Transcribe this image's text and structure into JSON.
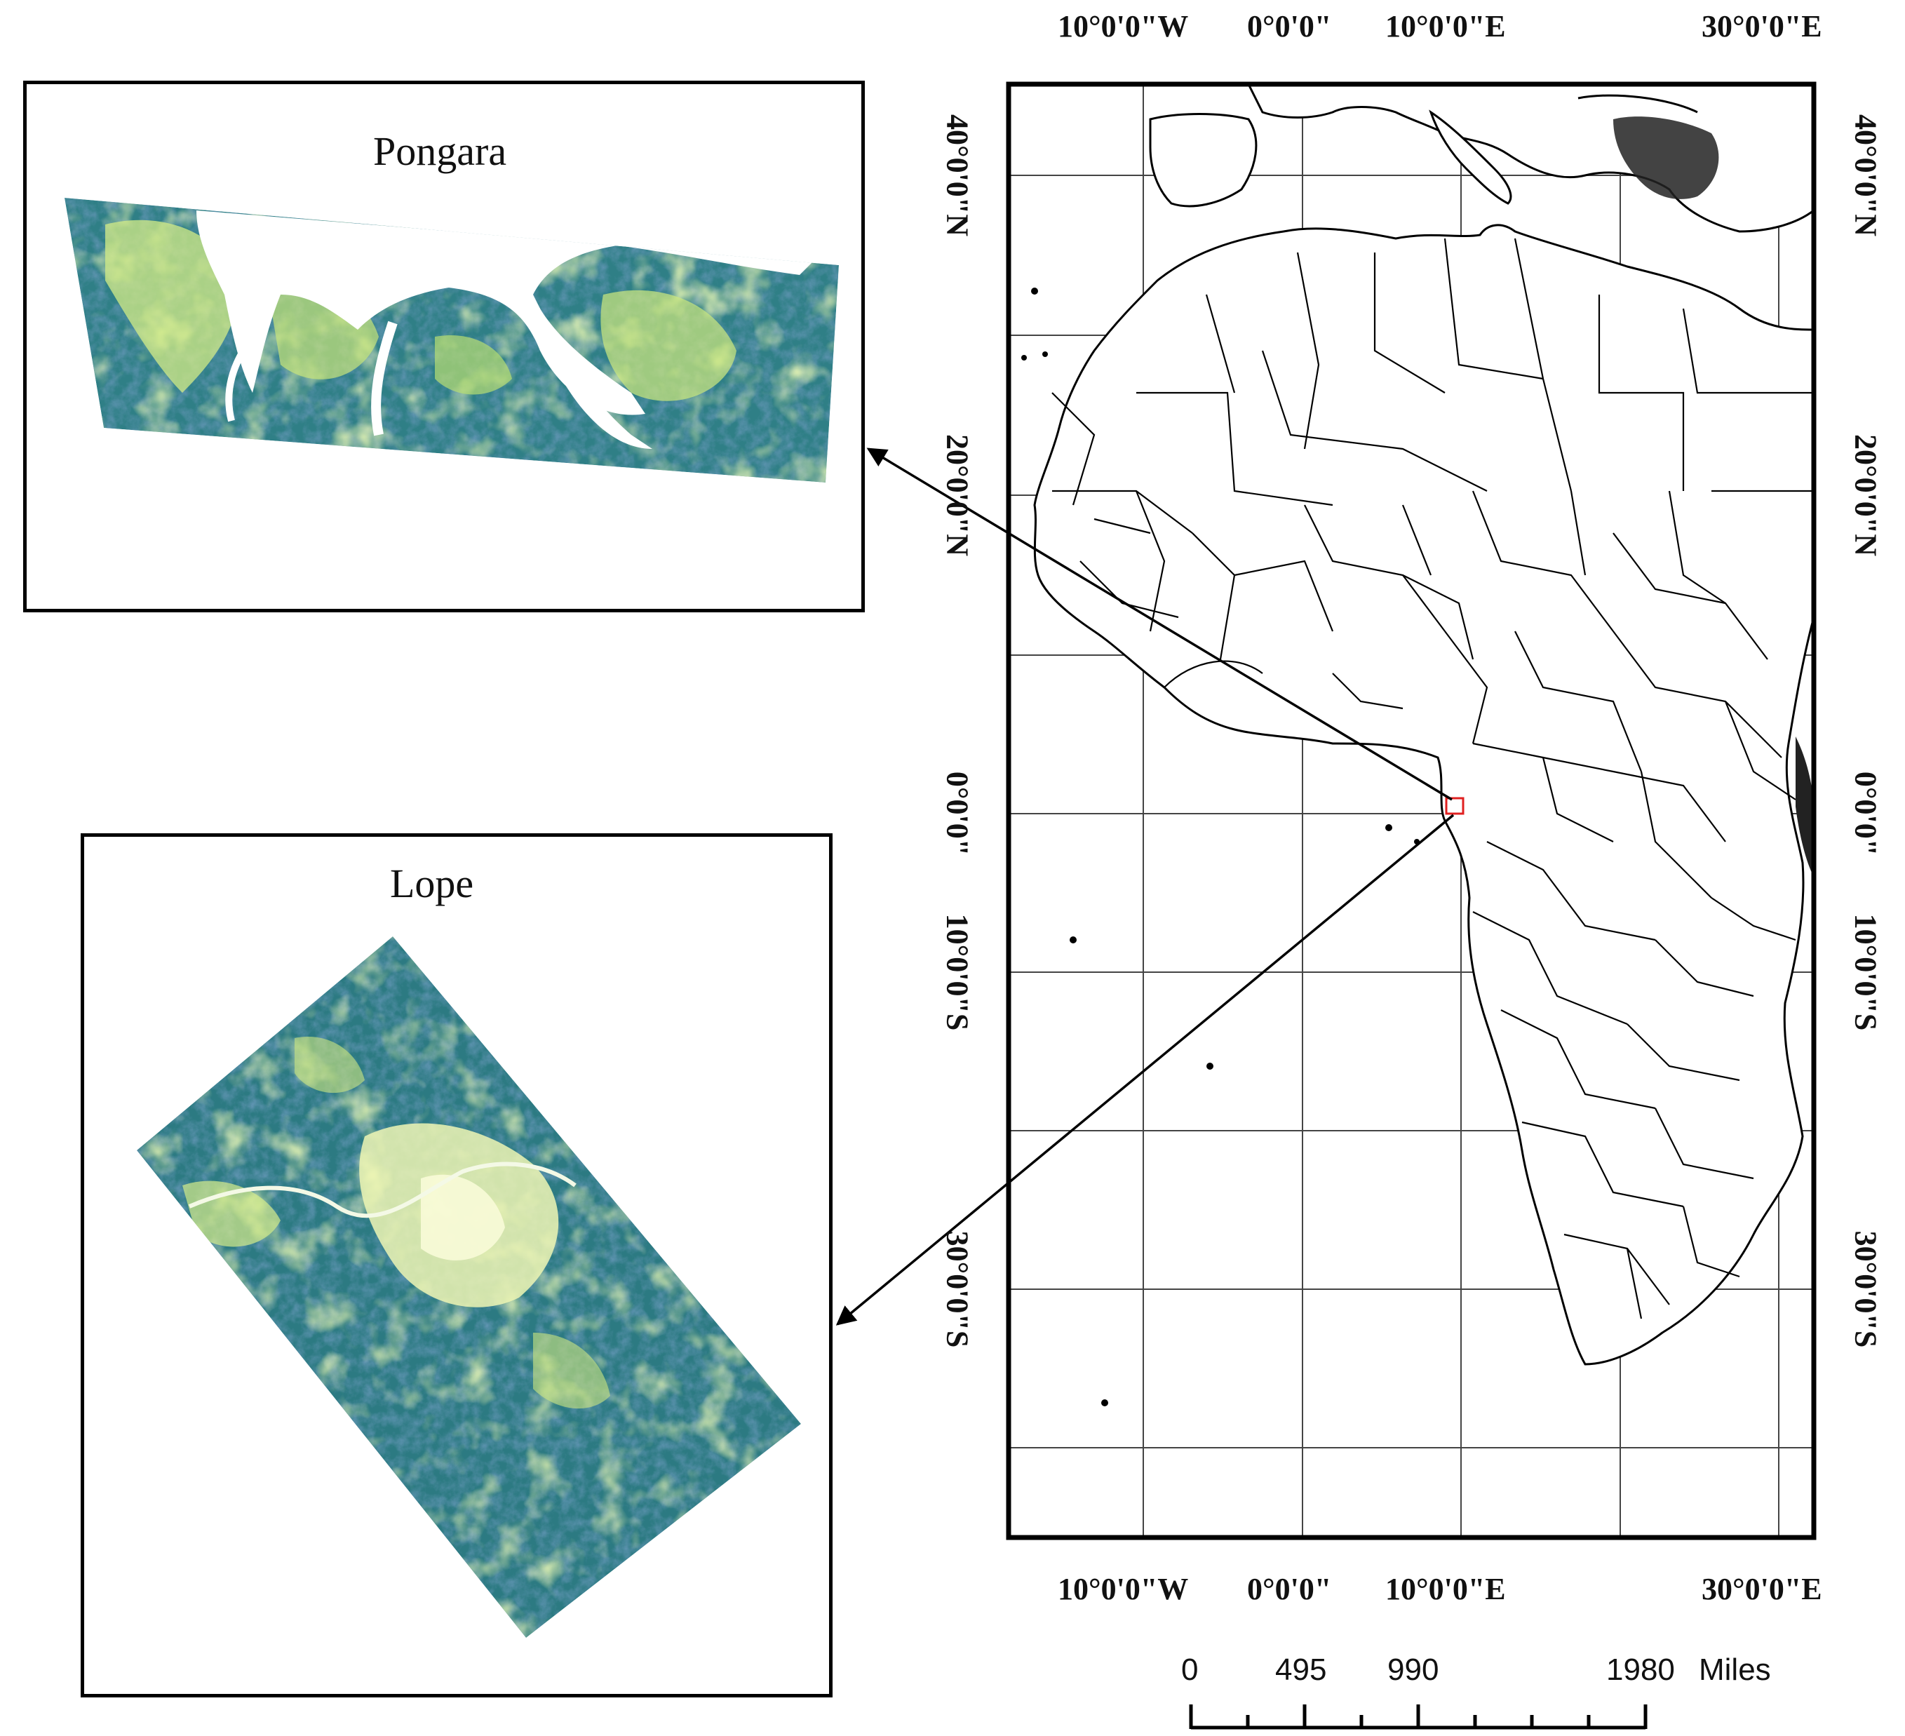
{
  "insets": {
    "pongara": {
      "title": "Pongara"
    },
    "lope": {
      "title": "Lope"
    }
  },
  "map": {
    "lon_labels_top": [
      "10°0'0\"W",
      "0°0'0\"",
      "10°0'0\"E",
      "30°0'0\"E"
    ],
    "lon_labels_bottom": [
      "10°0'0\"W",
      "0°0'0\"",
      "10°0'0\"E",
      "30°0'0\"E"
    ],
    "lat_labels_left": [
      "40°0'0\"N",
      "20°0'0\"N",
      "0°0'0\"",
      "10°0'0\"S",
      "30°0'0\"S"
    ],
    "lat_labels_right": [
      "40°0'0\"N",
      "20°0'0\"N",
      "0°0'0\"",
      "10°0'0\"S",
      "30°0'0\"S"
    ],
    "study_area_marker_color": "#e02020"
  },
  "scale_bar": {
    "ticks": [
      "0",
      "495",
      "990",
      "1980"
    ],
    "unit": "Miles"
  },
  "colors": {
    "veg_dark": "#1f5a8a",
    "veg_mid": "#2f8a7a",
    "veg_green": "#4fae5a",
    "veg_light": "#c8e87a",
    "veg_pale": "#f2f7b8"
  }
}
